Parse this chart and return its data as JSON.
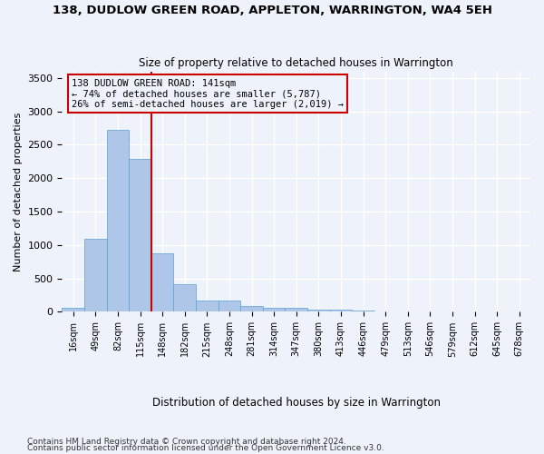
{
  "title": "138, DUDLOW GREEN ROAD, APPLETON, WARRINGTON, WA4 5EH",
  "subtitle": "Size of property relative to detached houses in Warrington",
  "xlabel": "Distribution of detached houses by size in Warrington",
  "ylabel": "Number of detached properties",
  "bar_values": [
    60,
    1100,
    2730,
    2290,
    870,
    420,
    170,
    165,
    90,
    65,
    55,
    30,
    30,
    20,
    5,
    3,
    2,
    1,
    1,
    0,
    0
  ],
  "bar_labels": [
    "16sqm",
    "49sqm",
    "82sqm",
    "115sqm",
    "148sqm",
    "182sqm",
    "215sqm",
    "248sqm",
    "281sqm",
    "314sqm",
    "347sqm",
    "380sqm",
    "413sqm",
    "446sqm",
    "479sqm",
    "513sqm",
    "546sqm",
    "579sqm",
    "612sqm",
    "645sqm",
    "678sqm"
  ],
  "bar_color": "#aec6e8",
  "bar_edge_color": "#5a9fd4",
  "vline_x_index": 4,
  "vline_color": "#cc0000",
  "annotation_title": "138 DUDLOW GREEN ROAD: 141sqm",
  "annotation_line1": "← 74% of detached houses are smaller (5,787)",
  "annotation_line2": "26% of semi-detached houses are larger (2,019) →",
  "annotation_box_color": "#cc0000",
  "ylim": [
    0,
    3600
  ],
  "yticks": [
    0,
    500,
    1000,
    1500,
    2000,
    2500,
    3000,
    3500
  ],
  "footer1": "Contains HM Land Registry data © Crown copyright and database right 2024.",
  "footer2": "Contains public sector information licensed under the Open Government Licence v3.0.",
  "bg_color": "#eef3fb",
  "grid_color": "#ffffff"
}
